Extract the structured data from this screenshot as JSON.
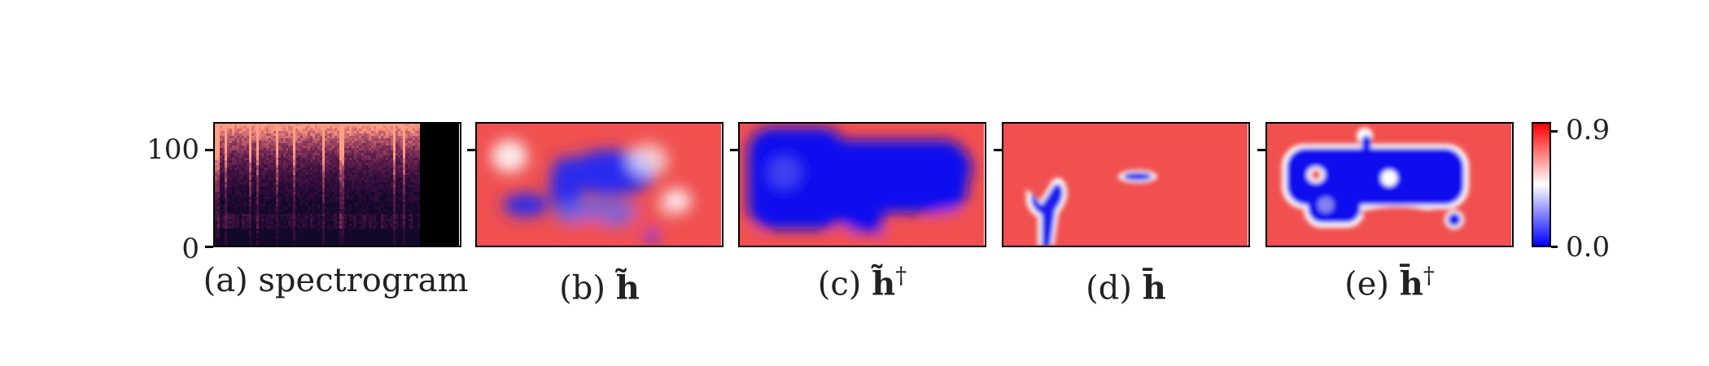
{
  "chart_data": [
    {
      "type": "heatmap",
      "panel": "spectrogram",
      "caption_prefix": "(a)",
      "caption_text": "spectrogram",
      "yticks": [
        0,
        100
      ],
      "ylim": [
        0,
        128
      ]
    },
    {
      "type": "heatmap",
      "panel": "h-tilde",
      "caption_prefix": "(b)",
      "symbol": "h̃",
      "dagger": ""
    },
    {
      "type": "heatmap",
      "panel": "h-tilde-dagger",
      "caption_prefix": "(c)",
      "symbol": "h̃",
      "dagger": "†"
    },
    {
      "type": "heatmap",
      "panel": "h-bar",
      "caption_prefix": "(d)",
      "symbol": "h̄",
      "dagger": ""
    },
    {
      "type": "heatmap",
      "panel": "h-bar-dagger",
      "caption_prefix": "(e)",
      "symbol": "h̄",
      "dagger": "†"
    }
  ],
  "colorbar": {
    "min_label": "0.0",
    "max_label": "0.9",
    "range": [
      0.0,
      0.9
    ],
    "colors": [
      "#0000ff",
      "#ffffff",
      "#ff0000"
    ]
  },
  "yaxis": {
    "tick_0": "0",
    "tick_100": "100"
  },
  "colors": {
    "red": "#f05050",
    "blue": "#0a0aee",
    "spectro_bg": "#14082a"
  }
}
